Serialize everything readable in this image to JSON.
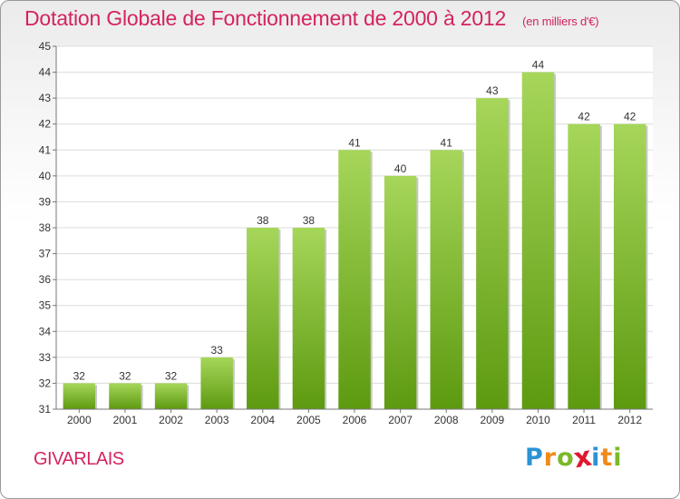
{
  "chart_data": {
    "type": "bar",
    "title": "Dotation Globale de Fonctionnement de 2000 à 2012",
    "unit_note": "(en milliers d'€)",
    "categories": [
      "2000",
      "2001",
      "2002",
      "2003",
      "2004",
      "2005",
      "2006",
      "2007",
      "2008",
      "2009",
      "2010",
      "2011",
      "2012"
    ],
    "values": [
      32,
      32,
      32,
      33,
      38,
      38,
      41,
      40,
      41,
      43,
      44,
      42,
      42
    ],
    "value_labels": [
      "32",
      "32",
      "32",
      "33",
      "38",
      "38",
      "41",
      "40",
      "41",
      "43",
      "44",
      "42",
      "42"
    ],
    "yticks": [
      "31",
      "32",
      "33",
      "34",
      "35",
      "36",
      "37",
      "38",
      "39",
      "40",
      "41",
      "42",
      "43",
      "44",
      "45"
    ],
    "ylim": [
      31,
      45
    ],
    "grid": true,
    "xlabel": "",
    "ylabel": "",
    "colors": {
      "bar_light": "#a6d65a",
      "bar_dark": "#5d9a10",
      "accent": "#d4235f"
    }
  },
  "commune": "GIVARLAIS",
  "logo": {
    "letters": [
      "P",
      "r",
      "o",
      "x",
      "i",
      "t",
      "i"
    ],
    "colors": [
      "#2a93d5",
      "#f08a1c",
      "#7ab929",
      "#e0192f",
      "#2a93d5",
      "#f08a1c",
      "#7ab929"
    ]
  }
}
